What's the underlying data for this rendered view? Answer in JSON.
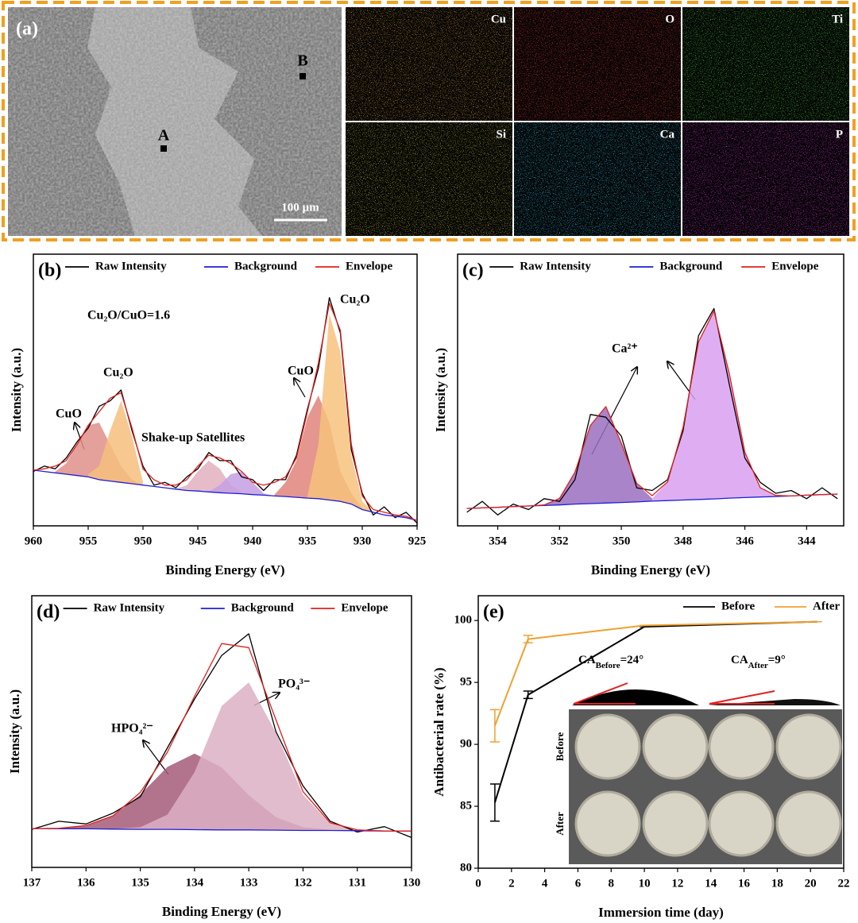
{
  "panel_a": {
    "label": "(a)",
    "points": [
      "A",
      "B"
    ],
    "scale_bar": "100 µm",
    "maps": [
      {
        "name": "Cu",
        "color": "#d4963a"
      },
      {
        "name": "O",
        "color": "#e0302a"
      },
      {
        "name": "Ti",
        "color": "#3ec43a"
      },
      {
        "name": "Si",
        "color": "#b8b040"
      },
      {
        "name": "Ca",
        "color": "#2ab8e0"
      },
      {
        "name": "P",
        "color": "#d030d0"
      }
    ]
  },
  "chart_data": [
    {
      "type": "line",
      "label": "(b)",
      "legend": "top",
      "x_label": "Binding Energy (eV)",
      "y_label": "Intensity (a.u.)",
      "xlim": [
        960,
        925
      ],
      "ylim": [
        0,
        100
      ],
      "xticks": [
        960,
        955,
        950,
        945,
        940,
        935,
        930,
        925
      ],
      "x": [
        960,
        959,
        958,
        957,
        956,
        955,
        954,
        953,
        952,
        951,
        950,
        949,
        948,
        947,
        946,
        945,
        944,
        943,
        942,
        941,
        940,
        939,
        938,
        937,
        936,
        935,
        934,
        933,
        932,
        931,
        930,
        929,
        928,
        927,
        926,
        925
      ],
      "series": [
        {
          "name": "Raw Intensity",
          "color": "#000000",
          "values": [
            20,
            22,
            21,
            25,
            31,
            36,
            44,
            46,
            50,
            35,
            22,
            15,
            16,
            14,
            18,
            21,
            27,
            24,
            24,
            18,
            17,
            13,
            17,
            17,
            26,
            43,
            58,
            84,
            71,
            28,
            12,
            4,
            7,
            3,
            5,
            1
          ]
        },
        {
          "name": "Background",
          "color": "#1f1fd6",
          "values": [
            20.5,
            20,
            19.5,
            19,
            18.5,
            18,
            17,
            16.5,
            16,
            15.5,
            15,
            14.5,
            14,
            13.5,
            13,
            12.8,
            12.5,
            12.2,
            12,
            11.8,
            11.5,
            11.3,
            11,
            10.8,
            10.5,
            10.2,
            10,
            9.5,
            9,
            8,
            6,
            5,
            4,
            3.5,
            3,
            2
          ]
        },
        {
          "name": "Envelope",
          "color": "#e0201c",
          "values": [
            20.5,
            21,
            22,
            24,
            30,
            37,
            42,
            47,
            49,
            36,
            21,
            17,
            15,
            15,
            17,
            22,
            26,
            25,
            23,
            20,
            16,
            15,
            16,
            18,
            25,
            42,
            60,
            82,
            72,
            30,
            11,
            6,
            5,
            4,
            3.5,
            2
          ]
        }
      ],
      "peaks": [
        {
          "color": "#df8f8a",
          "x": [
            958,
            957,
            956,
            955,
            954,
            953,
            952,
            951,
            950
          ],
          "values": [
            20,
            23,
            30,
            37,
            38,
            30,
            22,
            17,
            15
          ]
        },
        {
          "color": "#f6c07e",
          "x": [
            955,
            954,
            953,
            952,
            951,
            950
          ],
          "values": [
            19,
            22,
            35,
            46,
            33,
            16
          ]
        },
        {
          "color": "#e2b0c0",
          "x": [
            947,
            946,
            945,
            944,
            943,
            942,
            941
          ],
          "values": [
            13.6,
            15,
            20,
            24,
            21,
            15,
            12.5
          ]
        },
        {
          "color": "#c49fe3",
          "x": [
            944,
            943,
            942,
            941,
            940,
            939,
            938
          ],
          "values": [
            12.6,
            15,
            19,
            20,
            16,
            12,
            11
          ]
        },
        {
          "color": "#e0847a",
          "x": [
            938,
            937,
            936,
            935,
            934,
            933,
            932,
            931,
            930
          ],
          "values": [
            11.5,
            16,
            24,
            40,
            48,
            38,
            20,
            12,
            6.5
          ]
        },
        {
          "color": "#f7c27d",
          "x": [
            935,
            934,
            933,
            932,
            931,
            930,
            929
          ],
          "values": [
            11,
            30,
            78,
            64,
            26,
            9,
            5.2
          ]
        }
      ],
      "annotations": [
        "Cu₂O/CuO=1.6",
        "CuO",
        "Cu₂O",
        "Shake-up Satellites",
        "CuO",
        "Cu₂O"
      ]
    },
    {
      "type": "line",
      "label": "(c)",
      "legend": "top",
      "x_label": "Binding Energy (eV)",
      "y_label": "Intensity (a.u.)",
      "xlim": [
        355.3,
        342.8
      ],
      "ylim": [
        0,
        100
      ],
      "xticks": [
        354,
        352,
        350,
        348,
        346,
        344
      ],
      "x": [
        355,
        354.5,
        354,
        353.5,
        353,
        352.5,
        352,
        351.5,
        351,
        350.5,
        350,
        349.5,
        349,
        348.5,
        348,
        347.5,
        347,
        346.5,
        346,
        345.5,
        345,
        344.5,
        344,
        343.5,
        343
      ],
      "series": [
        {
          "name": "Raw Intensity",
          "color": "#000000",
          "values": [
            5,
            9,
            4,
            8,
            6,
            10,
            9,
            17,
            41,
            40,
            33,
            14,
            13,
            17,
            35,
            70,
            80,
            52,
            25,
            16,
            12,
            13,
            10,
            14,
            10
          ]
        },
        {
          "name": "Background",
          "color": "#1f1fd6",
          "values": [
            6.4,
            6.6,
            6.8,
            7.1,
            7.3,
            7.5,
            7.7,
            8,
            8.2,
            8.4,
            8.6,
            8.8,
            9.1,
            9.3,
            9.5,
            9.7,
            9.9,
            10.2,
            10.4,
            10.6,
            10.8,
            11,
            11.3,
            11.5,
            11.7
          ]
        },
        {
          "name": "Envelope",
          "color": "#e0201c",
          "values": [
            6.4,
            6.6,
            6.8,
            7.1,
            7.3,
            7.7,
            10.1,
            19.7,
            37,
            43.9,
            30.4,
            15.6,
            11.1,
            16.2,
            36.3,
            67.7,
            79.1,
            55.9,
            27.1,
            14,
            11.2,
            11,
            11.3,
            11.5,
            11.7
          ]
        }
      ],
      "peaks": [
        {
          "color": "#9a6fbf",
          "x": [
            352.5,
            352,
            351.5,
            351,
            350.5,
            350,
            349.5,
            349
          ],
          "values": [
            7.7,
            10.1,
            19.7,
            37,
            43.9,
            30.4,
            15.5,
            10.1
          ]
        },
        {
          "color": "#d9a0f0",
          "x": [
            349,
            348.5,
            348,
            347.5,
            347,
            346.5,
            346,
            345.5,
            345
          ],
          "values": [
            10.1,
            16.1,
            36.3,
            67.7,
            79.1,
            55.9,
            27.1,
            14,
            11.2
          ]
        }
      ],
      "annotations": [
        "Ca²⁺"
      ]
    },
    {
      "type": "line",
      "label": "(d)",
      "legend": "top",
      "x_label": "Binding Energy (eV)",
      "y_label": "Intensity (a.u.)",
      "xlim": [
        137,
        130
      ],
      "ylim": [
        0,
        100
      ],
      "xticks": [
        137,
        136,
        135,
        134,
        133,
        132,
        131,
        130
      ],
      "x": [
        137,
        136.5,
        136,
        135.5,
        135,
        134.5,
        134,
        133.5,
        133,
        132.5,
        132,
        131.5,
        131,
        130.5,
        130
      ],
      "series": [
        {
          "name": "Raw Intensity",
          "color": "#000000",
          "values": [
            14,
            17,
            16,
            20,
            26,
            44,
            62,
            78,
            86,
            50,
            30,
            17,
            13,
            15,
            11
          ]
        },
        {
          "name": "Background",
          "color": "#1f1fd6",
          "values": [
            14.3,
            14.2,
            14.2,
            14.1,
            14,
            14,
            13.9,
            13.8,
            13.8,
            13.7,
            13.6,
            13.6,
            13.5,
            13.4,
            13.4
          ]
        },
        {
          "name": "Envelope",
          "color": "#e0201c",
          "values": [
            14.3,
            14.4,
            15.4,
            19,
            27.6,
            42.4,
            63,
            82.4,
            80.9,
            54.4,
            27.9,
            16.4,
            13.8,
            13.4,
            13.4
          ]
        }
      ],
      "peaks": [
        {
          "color": "#a55a78",
          "x": [
            136.5,
            136,
            135.5,
            135,
            134.5,
            134,
            133.5,
            133,
            132.5,
            132,
            131.5
          ],
          "values": [
            14.4,
            15.4,
            18.9,
            26.8,
            37,
            41.9,
            36.8,
            26.6,
            18.5,
            14.8,
            13.8
          ]
        },
        {
          "color": "#dcb0c4",
          "x": [
            135.5,
            135,
            134.5,
            134,
            133.5,
            133,
            132.5,
            132,
            131.5,
            131
          ],
          "values": [
            14.2,
            14.8,
            19.4,
            35,
            59.4,
            68.1,
            49.6,
            26.7,
            16.2,
            13.8
          ]
        }
      ],
      "annotations": [
        "HPO₄²⁻",
        "PO₄³⁻"
      ]
    },
    {
      "type": "line",
      "label": "(e)",
      "legend": "upper right",
      "x_label": "Immersion time (day)",
      "y_label": "Antibacterial rate (%)",
      "xlim": [
        0,
        22
      ],
      "ylim": [
        80,
        102
      ],
      "xticks": [
        0,
        2,
        4,
        6,
        8,
        10,
        12,
        14,
        16,
        18,
        20,
        22
      ],
      "yticks": [
        80,
        85,
        90,
        95,
        100
      ],
      "x": [
        1,
        3,
        10,
        20.4
      ],
      "series": [
        {
          "name": "Before",
          "color": "#000000",
          "values": [
            85.3,
            94,
            99.5,
            99.9
          ],
          "errors": [
            1.5,
            0.3,
            0,
            0
          ]
        },
        {
          "name": "After",
          "color": "#f0a030",
          "values": [
            91.5,
            98.5,
            99.6,
            99.9
          ],
          "errors": [
            1.3,
            0.3,
            0,
            0
          ]
        }
      ],
      "inset": {
        "ca_before": {
          "base": "CA",
          "sub": "Before",
          "rest": "=24°"
        },
        "ca_after": {
          "base": "CA",
          "sub": "After",
          "rest": "=9°"
        },
        "rows": [
          "Before",
          "After"
        ]
      }
    }
  ]
}
